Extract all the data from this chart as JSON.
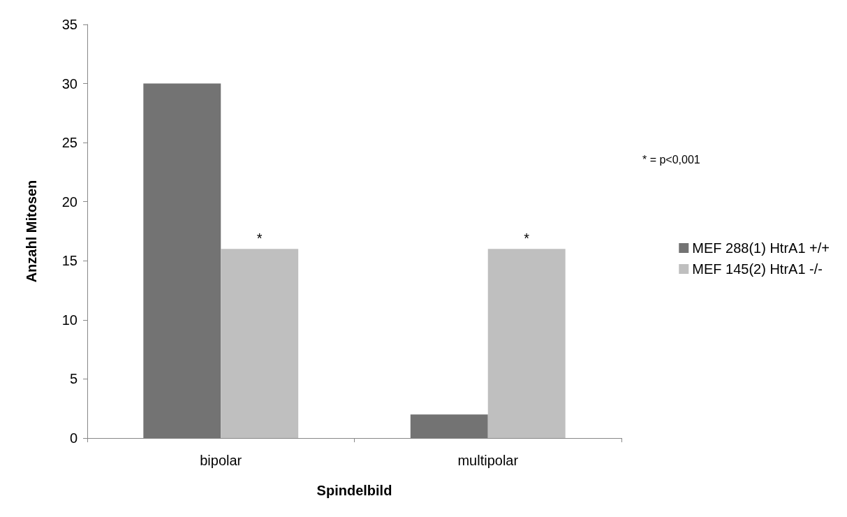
{
  "chart_data": {
    "type": "bar",
    "xlabel": "Spindelbild",
    "ylabel": "Anzahl Mitosen",
    "categories": [
      "bipolar",
      "multipolar"
    ],
    "series": [
      {
        "name": "MEF 288(1) HtrA1 +/+",
        "color": "#737373",
        "values": [
          30,
          2
        ]
      },
      {
        "name": "MEF 145(2) HtrA1 -/-",
        "color": "#bfbfbf",
        "values": [
          16,
          16
        ]
      }
    ],
    "ylim": [
      0,
      35
    ],
    "yticks": [
      0,
      5,
      10,
      15,
      20,
      25,
      30,
      35
    ],
    "grid": false,
    "legend": "right",
    "annotations": [
      {
        "text": "*",
        "x": "bipolar",
        "y": 16
      },
      {
        "text": "*",
        "x": "multipolar",
        "y": 16
      },
      "* = p<0,001"
    ]
  }
}
